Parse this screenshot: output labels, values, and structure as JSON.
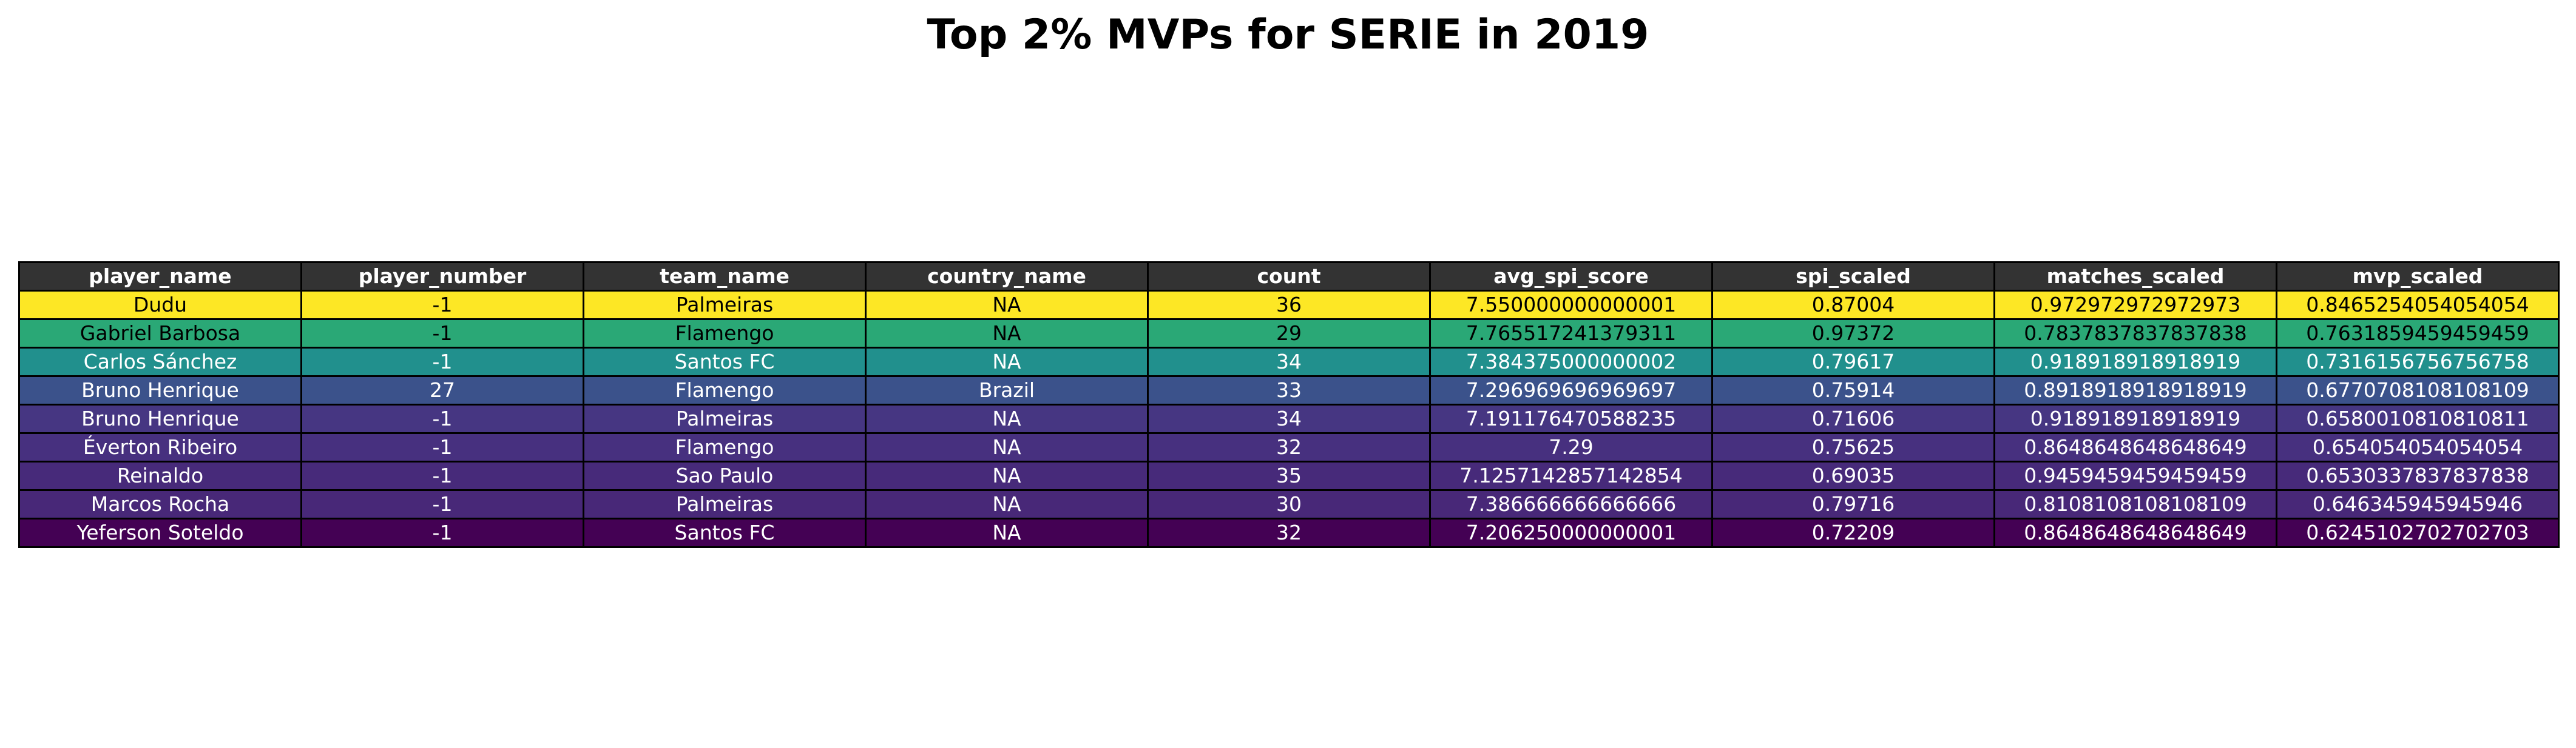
{
  "chart_data": {
    "type": "table",
    "title": "Top 2% MVPs for SERIE in 2019",
    "columns": [
      "player_name",
      "player_number",
      "team_name",
      "country_name",
      "count",
      "avg_spi_score",
      "spi_scaled",
      "matches_scaled",
      "mvp_scaled"
    ],
    "rows": [
      [
        "Dudu",
        "-1",
        "Palmeiras",
        "NA",
        "36",
        "7.550000000000001",
        "0.87004",
        "0.972972972972973",
        "0.8465254054054054"
      ],
      [
        "Gabriel Barbosa",
        "-1",
        "Flamengo",
        "NA",
        "29",
        "7.765517241379311",
        "0.97372",
        "0.7837837837837838",
        "0.7631859459459459"
      ],
      [
        "Carlos Sánchez",
        "-1",
        "Santos FC",
        "NA",
        "34",
        "7.384375000000002",
        "0.79617",
        "0.918918918918919",
        "0.7316156756756758"
      ],
      [
        "Bruno Henrique",
        "27",
        "Flamengo",
        "Brazil",
        "33",
        "7.296969696969697",
        "0.75914",
        "0.8918918918918919",
        "0.6770708108108109"
      ],
      [
        "Bruno Henrique",
        "-1",
        "Palmeiras",
        "NA",
        "34",
        "7.191176470588235",
        "0.71606",
        "0.918918918918919",
        "0.6580010810810811"
      ],
      [
        "Éverton Ribeiro",
        "-1",
        "Flamengo",
        "NA",
        "32",
        "7.29",
        "0.75625",
        "0.8648648648648649",
        "0.654054054054054"
      ],
      [
        "Reinaldo",
        "-1",
        "Sao Paulo",
        "NA",
        "35",
        "7.1257142857142854",
        "0.69035",
        "0.9459459459459459",
        "0.6530337837837838"
      ],
      [
        "Marcos Rocha",
        "-1",
        "Palmeiras",
        "NA",
        "30",
        "7.386666666666666",
        "0.79716",
        "0.8108108108108109",
        "0.646345945945946"
      ],
      [
        "Yeferson Soteldo",
        "-1",
        "Santos FC",
        "NA",
        "32",
        "7.206250000000001",
        "0.72209",
        "0.8648648648648649",
        "0.6245102702702703"
      ]
    ],
    "row_colors": [
      "#fde725",
      "#2aa876",
      "#21908d",
      "#3b528b",
      "#463682",
      "#47307f",
      "#472a7a",
      "#482878",
      "#440154"
    ],
    "row_text_colors": [
      "#000000",
      "#000000",
      "#ffffff",
      "#ffffff",
      "#ffffff",
      "#ffffff",
      "#ffffff",
      "#ffffff",
      "#ffffff"
    ],
    "header_color": "#333333",
    "header_text_color": "#ffffff"
  }
}
